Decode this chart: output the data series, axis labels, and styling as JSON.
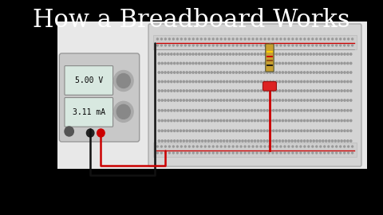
{
  "title": "How a Breadboard Works",
  "title_fontsize": 22,
  "title_color": "#ffffff",
  "bg_color": "#000000",
  "board_facecolor": "#d8d8d8",
  "board_edgecolor": "#aaaaaa",
  "rail_strip_color": "#cccccc",
  "dot_color": "#888888",
  "voltage_text": "5.00 V",
  "current_text": "3.11 mA",
  "ps_facecolor": "#c8c8c8",
  "ps_edgecolor": "#999999",
  "display_facecolor": "#d8e8e0",
  "display_edgecolor": "#888888",
  "wire_black": "#111111",
  "wire_red": "#cc0000",
  "resistor_body": "#c8a030",
  "resistor_edge": "#555533",
  "led_body": "#dd2222",
  "led_edge": "#991111",
  "knob_outer": "#aaaaaa",
  "knob_inner": "#888888",
  "n_rail_dots": 50,
  "n_main_cols": 63,
  "n_main_rows": 5,
  "red_line_color": "#cc0000",
  "black_line_color": "#111111"
}
